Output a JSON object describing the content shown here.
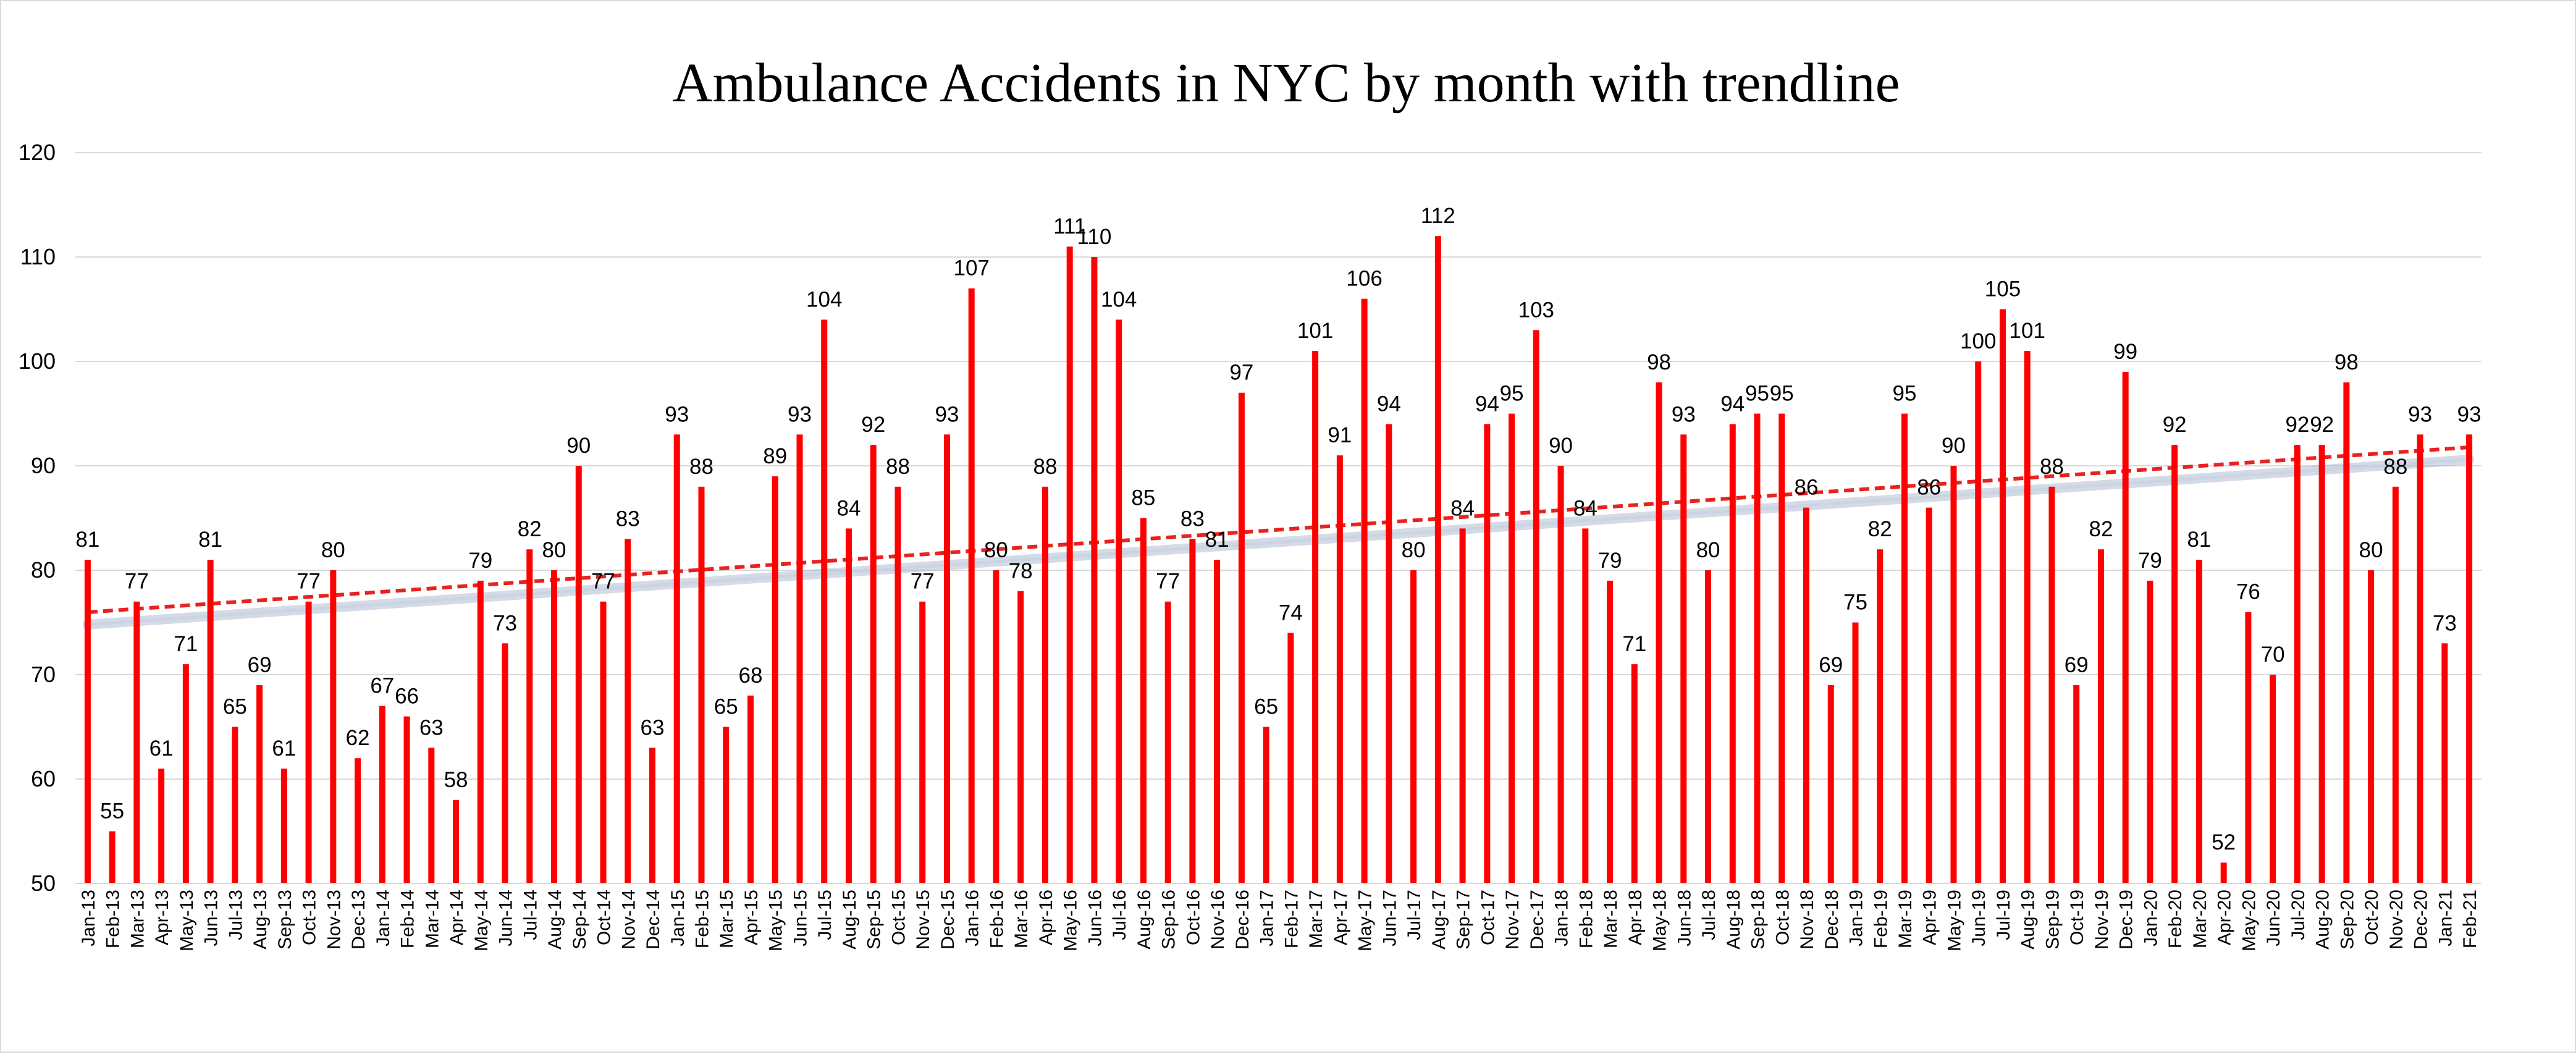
{
  "chart_data": {
    "type": "bar",
    "title": "Ambulance Accidents in NYC by month with trendline",
    "xlabel": "",
    "ylabel": "",
    "ylim": [
      50,
      120
    ],
    "yticks": [
      50,
      60,
      70,
      80,
      90,
      100,
      110,
      120
    ],
    "grid": true,
    "legend": "none",
    "bar_color": "#ff0000",
    "trendline_color": "#e8221e",
    "trendline_style": "dashed",
    "trendline_shadow_color": "#9fb0c8",
    "gridline_color": "#d9d9d9",
    "categories": [
      "Jan-13",
      "Feb-13",
      "Mar-13",
      "Apr-13",
      "May-13",
      "Jun-13",
      "Jul-13",
      "Aug-13",
      "Sep-13",
      "Oct-13",
      "Nov-13",
      "Dec-13",
      "Jan-14",
      "Feb-14",
      "Mar-14",
      "Apr-14",
      "May-14",
      "Jun-14",
      "Jul-14",
      "Aug-14",
      "Sep-14",
      "Oct-14",
      "Nov-14",
      "Dec-14",
      "Jan-15",
      "Feb-15",
      "Mar-15",
      "Apr-15",
      "May-15",
      "Jun-15",
      "Jul-15",
      "Aug-15",
      "Sep-15",
      "Oct-15",
      "Nov-15",
      "Dec-15",
      "Jan-16",
      "Feb-16",
      "Mar-16",
      "Apr-16",
      "May-16",
      "Jun-16",
      "Jul-16",
      "Aug-16",
      "Sep-16",
      "Oct-16",
      "Nov-16",
      "Dec-16",
      "Jan-17",
      "Feb-17",
      "Mar-17",
      "Apr-17",
      "May-17",
      "Jun-17",
      "Jul-17",
      "Aug-17",
      "Sep-17",
      "Oct-17",
      "Nov-17",
      "Dec-17",
      "Jan-18",
      "Feb-18",
      "Mar-18",
      "Apr-18",
      "May-18",
      "Jun-18",
      "Jul-18",
      "Aug-18",
      "Sep-18",
      "Oct-18",
      "Nov-18",
      "Dec-18",
      "Jan-19",
      "Feb-19",
      "Mar-19",
      "Apr-19",
      "May-19",
      "Jun-19",
      "Jul-19",
      "Aug-19",
      "Sep-19",
      "Oct-19",
      "Nov-19",
      "Dec-19",
      "Jan-20",
      "Feb-20",
      "Mar-20",
      "Apr-20",
      "May-20",
      "Jun-20",
      "Jul-20",
      "Aug-20",
      "Sep-20",
      "Oct-20",
      "Nov-20",
      "Dec-20",
      "Jan-21",
      "Feb-21"
    ],
    "values": [
      81,
      55,
      77,
      61,
      71,
      81,
      65,
      69,
      61,
      77,
      80,
      62,
      67,
      66,
      63,
      58,
      79,
      73,
      82,
      80,
      90,
      77,
      83,
      63,
      93,
      88,
      65,
      68,
      89,
      93,
      104,
      84,
      92,
      88,
      77,
      93,
      107,
      80,
      78,
      88,
      111,
      110,
      104,
      85,
      77,
      83,
      81,
      97,
      65,
      74,
      101,
      91,
      106,
      94,
      80,
      112,
      84,
      94,
      95,
      103,
      90,
      84,
      79,
      71,
      98,
      93,
      80,
      94,
      95,
      95,
      86,
      69,
      75,
      82,
      95,
      86,
      90,
      100,
      105,
      101,
      88,
      69,
      82,
      99,
      79,
      92,
      81,
      52,
      76,
      70,
      92,
      92,
      98,
      80,
      88,
      93,
      73,
      93
    ],
    "trendline": {
      "type": "linear"
    }
  }
}
